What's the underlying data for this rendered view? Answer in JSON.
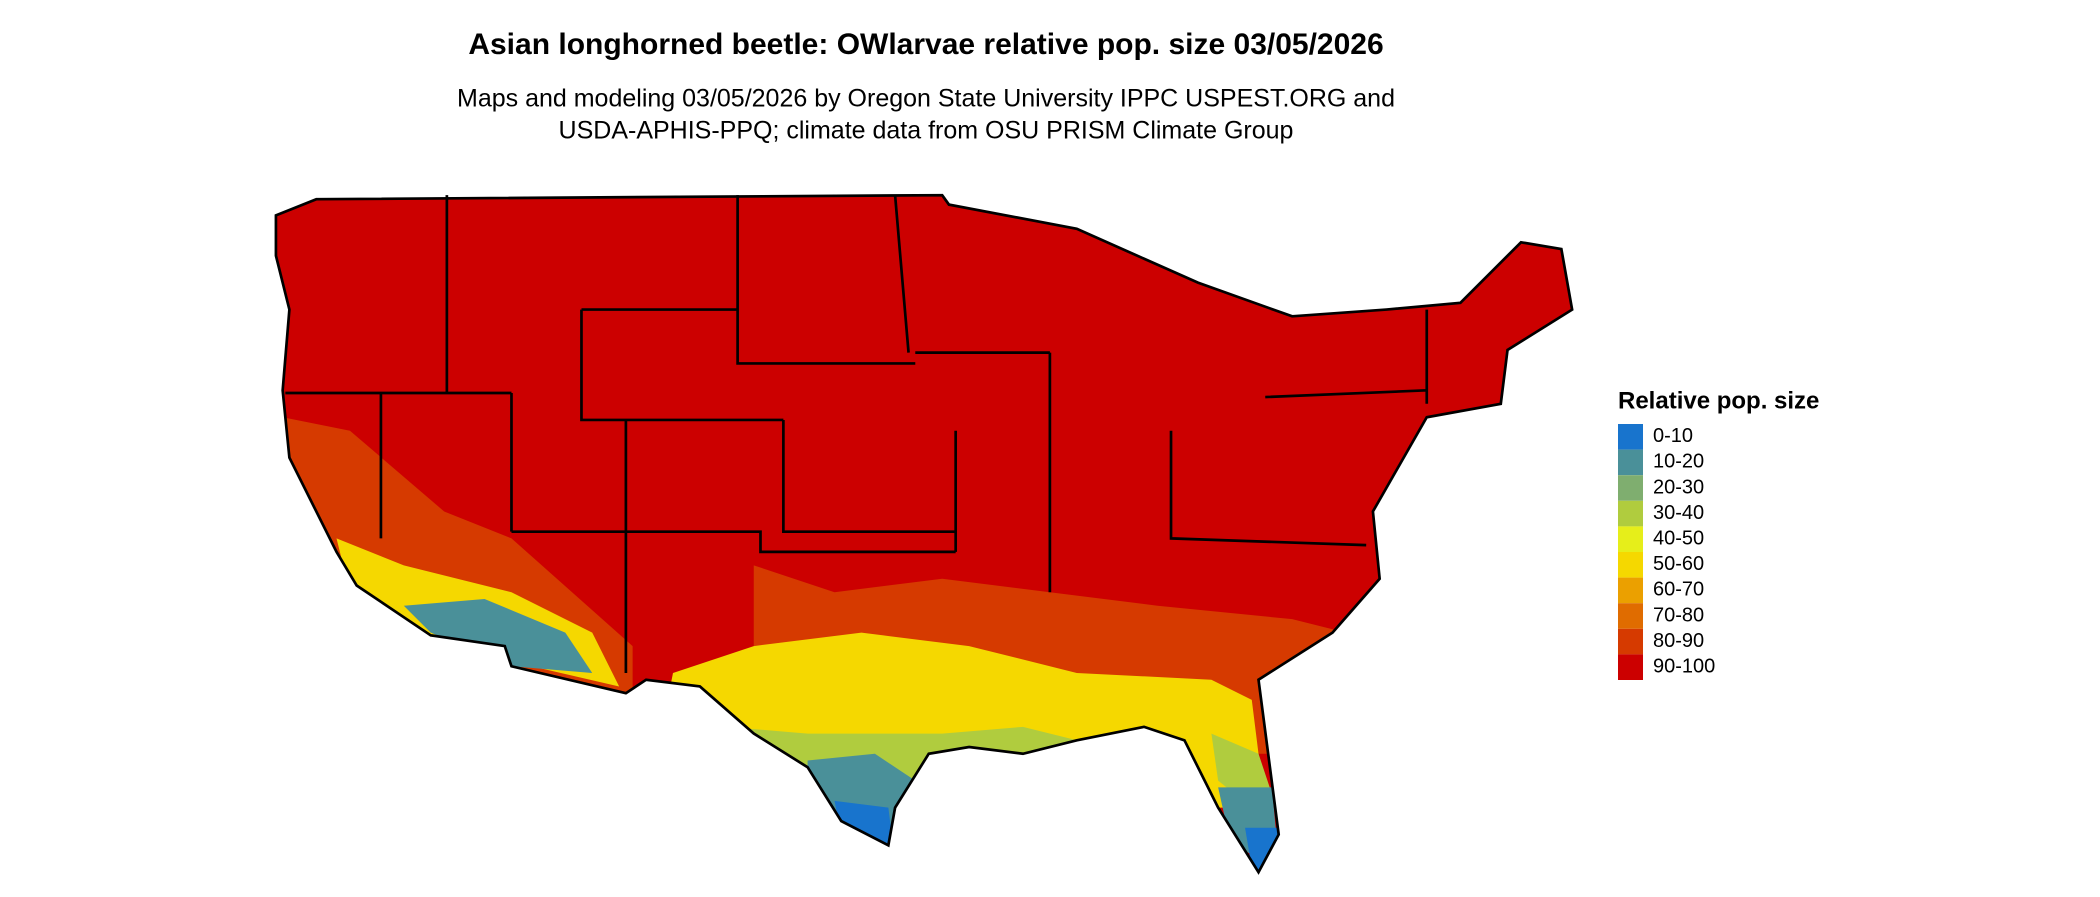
{
  "header": {
    "title": "Asian longhorned beetle: OWlarvae relative pop. size 03/05/2026",
    "subtitle_lines": [
      "Maps and modeling 03/05/2026 by Oregon State University IPPC USPEST.ORG and",
      "USDA-APHIS-PPQ; climate data from OSU PRISM Climate Group"
    ]
  },
  "legend": {
    "title": "Relative pop. size",
    "items": [
      {
        "label": "0-10",
        "color": "#1874cd"
      },
      {
        "label": "10-20",
        "color": "#4a9099"
      },
      {
        "label": "20-30",
        "color": "#7fae6f"
      },
      {
        "label": "30-40",
        "color": "#b0cc3e"
      },
      {
        "label": "40-50",
        "color": "#e6ee1a"
      },
      {
        "label": "50-60",
        "color": "#f5d800"
      },
      {
        "label": "60-70",
        "color": "#eba000"
      },
      {
        "label": "70-80",
        "color": "#e06c00"
      },
      {
        "label": "80-90",
        "color": "#d63a00"
      },
      {
        "label": "90-100",
        "color": "#cc0000"
      }
    ]
  }
}
